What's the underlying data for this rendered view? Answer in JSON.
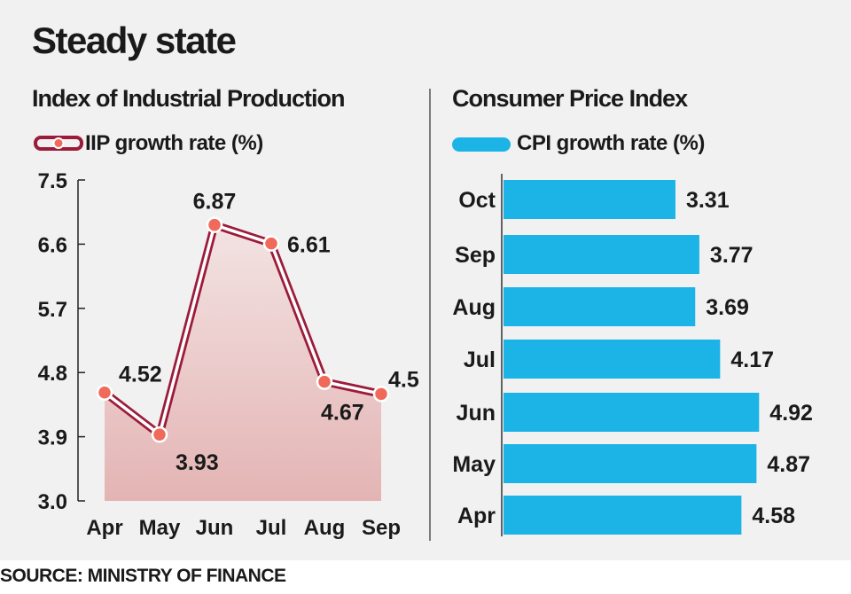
{
  "title": "Steady state",
  "source": "SOURCE: MINISTRY OF FINANCE",
  "chart_data": [
    {
      "type": "line",
      "title": "Index of Industrial Production",
      "categories": [
        "Apr",
        "May",
        "Jun",
        "Jul",
        "Aug",
        "Sep"
      ],
      "series": [
        {
          "name": "IIP growth rate (%)",
          "values": [
            4.52,
            3.93,
            6.87,
            6.61,
            4.67,
            4.5
          ]
        }
      ],
      "data_labels": [
        "4.52",
        "3.93",
        "6.87",
        "6.61",
        "4.67",
        "4.5"
      ],
      "ylim": [
        3.0,
        7.5
      ],
      "yticks": [
        "3.0",
        "3.9",
        "4.8",
        "5.7",
        "6.6",
        "7.5"
      ],
      "grid": false,
      "legend": "top-left",
      "colors": {
        "line": "#9b1b3a",
        "marker": "#f06a5a",
        "area_top": "#f3e3e3",
        "area_bottom": "#e4b4b4"
      }
    },
    {
      "type": "bar",
      "orientation": "horizontal",
      "title": "Consumer Price Index",
      "categories": [
        "Oct",
        "Sep",
        "Aug",
        "Jul",
        "Jun",
        "May",
        "Apr"
      ],
      "series": [
        {
          "name": "CPI growth rate (%)",
          "values": [
            3.31,
            3.77,
            3.69,
            4.17,
            4.92,
            4.87,
            4.58
          ]
        }
      ],
      "data_labels": [
        "3.31",
        "3.77",
        "3.69",
        "4.17",
        "4.92",
        "4.87",
        "4.58"
      ],
      "legend": "top-left",
      "grid": false,
      "colors": {
        "bar": "#1cb4e6"
      }
    }
  ]
}
